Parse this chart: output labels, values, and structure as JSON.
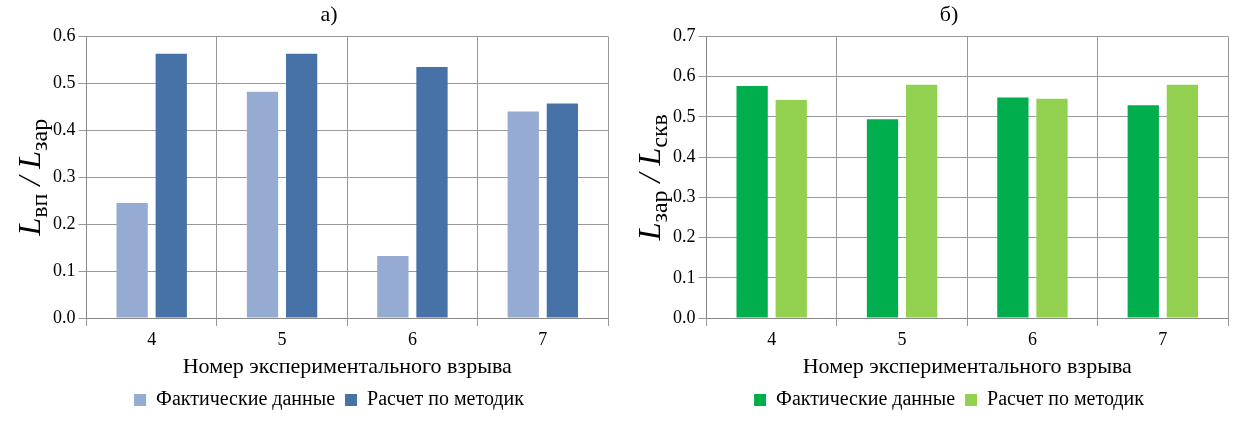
{
  "chart_data": [
    {
      "type": "bar",
      "title": "а)",
      "xlabel": "Номер экспериментального взрыва",
      "ylabel": "L$_{вп}$ / L$_{зар}$",
      "categories": [
        "4",
        "5",
        "6",
        "7"
      ],
      "series": [
        {
          "name": "Фактические данные",
          "color": "#95abd2",
          "values": [
            0.245,
            0.482,
            0.132,
            0.44
          ]
        },
        {
          "name": "Расчет по методик",
          "color": "#4672a8",
          "values": [
            0.563,
            0.563,
            0.535,
            0.457
          ]
        }
      ],
      "ylim": [
        0,
        0.6
      ],
      "yticks": [
        {
          "value": 0,
          "label": "0.0"
        },
        0.1,
        0.2,
        0.3,
        0.4,
        0.5,
        0.6
      ],
      "grid": true,
      "legend": "bottom"
    },
    {
      "type": "bar",
      "title": "б)",
      "xlabel": "Номер экспериментального взрыва",
      "ylabel": "L$_{зар}$ / L$_{скв}$",
      "categories": [
        "4",
        "5",
        "6",
        "7"
      ],
      "series": [
        {
          "name": "Фактические данные",
          "color": "#00ae4e",
          "values": [
            0.577,
            0.494,
            0.548,
            0.529
          ]
        },
        {
          "name": "Расчет по методик",
          "color": "#92d050",
          "values": [
            0.542,
            0.58,
            0.545,
            0.58
          ]
        }
      ],
      "ylim": [
        0,
        0.7
      ],
      "yticks": [
        {
          "value": 0,
          "label": "0.0"
        },
        0.1,
        0.2,
        0.3,
        0.4,
        0.5,
        0.6,
        0.7
      ],
      "grid": true,
      "legend": "bottom"
    }
  ]
}
